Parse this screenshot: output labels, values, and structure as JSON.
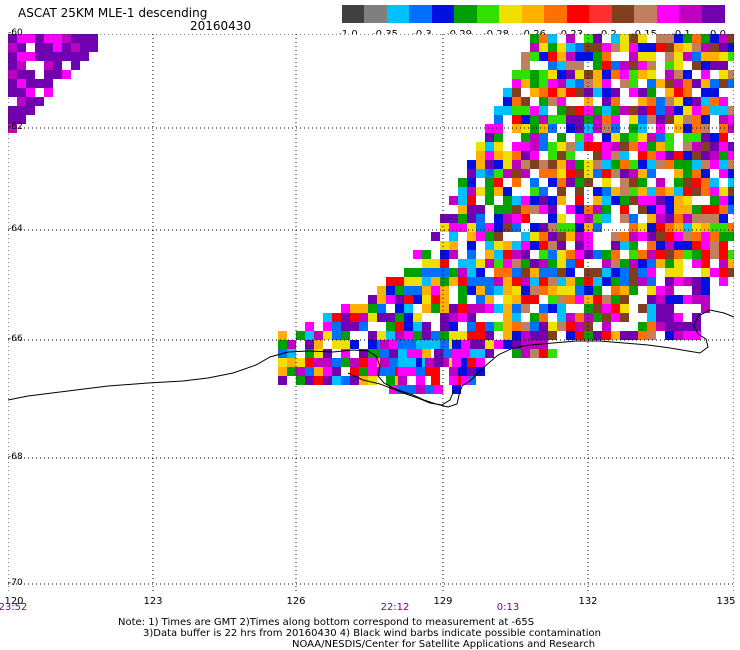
{
  "header": {
    "title": "ASCAT 25KM MLE-1 descending",
    "date": "20160430"
  },
  "legend": {
    "colors": [
      "#404040",
      "#7f7f7f",
      "#00c0ff",
      "#0070ff",
      "#0010e0",
      "#00a000",
      "#30e000",
      "#f0e000",
      "#ffb000",
      "#ff7000",
      "#ff0000",
      "#ff3030",
      "#804020",
      "#c08060",
      "#ff00ff",
      "#c000c0",
      "#7000b0"
    ],
    "labels": [
      "-1.0",
      "-0.35",
      "-0.3",
      "-0.29",
      "-0.28",
      "-0.26",
      "-0.23",
      "-0.2",
      "-0.15",
      "-0.1",
      "0.0"
    ]
  },
  "map": {
    "lat_labels": [
      "-60",
      "-62",
      "-64",
      "-66",
      "-68",
      "-70"
    ],
    "lon_labels": [
      "120",
      "123",
      "126",
      "129",
      "132",
      "135"
    ],
    "time_labels": [
      "23:52",
      "22:12",
      "0:13"
    ]
  },
  "notes": {
    "line1": "Note: 1) Times are GMT 2)Times along bottom correspond to measurement at -65S",
    "line2": "3)Data buffer is 22 hrs from 20160430 4) Black wind barbs indicate possible contamination",
    "line3": "NOAA/NESDIS/Center for Satellite Applications and Research"
  }
}
